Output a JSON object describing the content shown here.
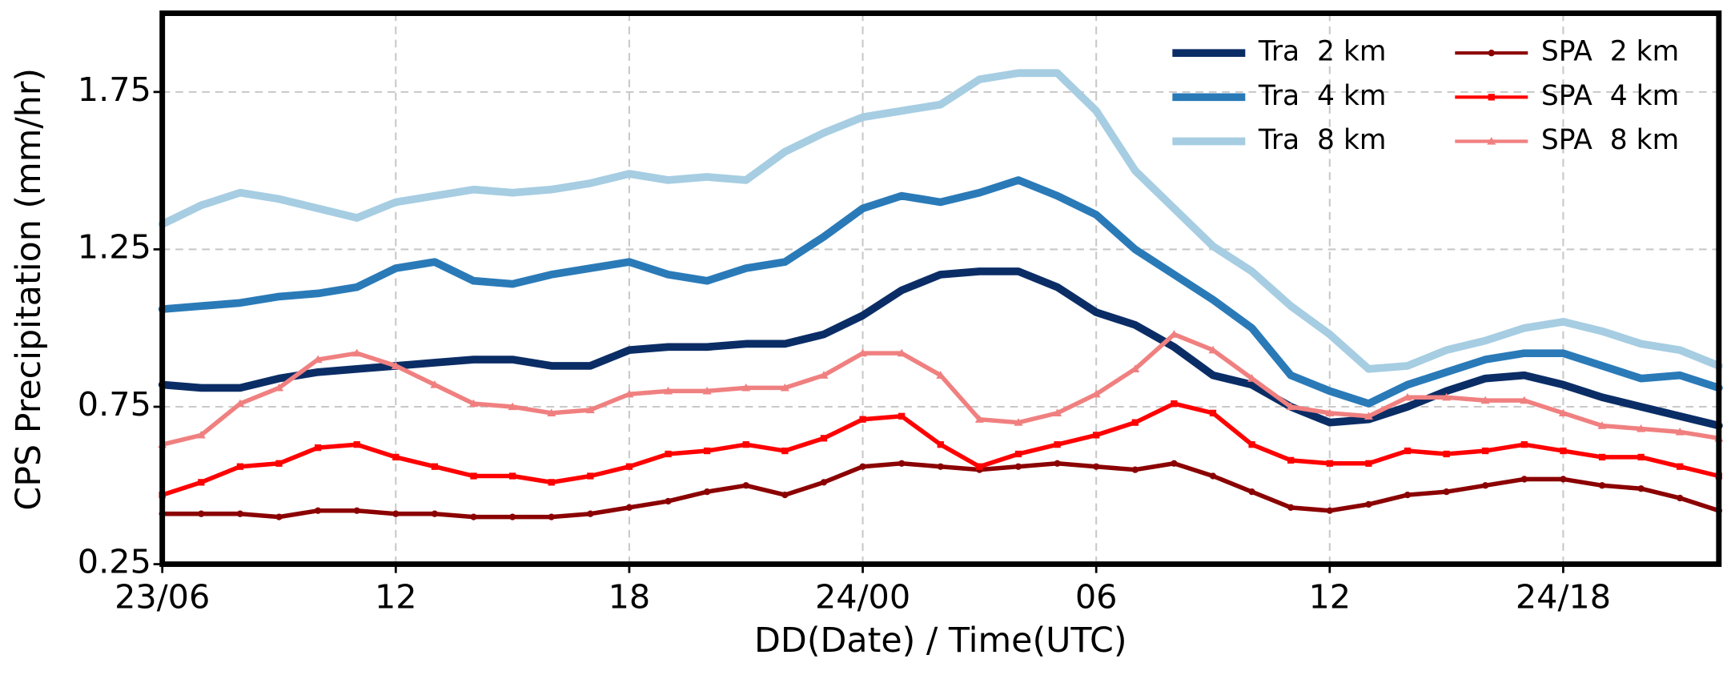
{
  "chart_data": {
    "type": "line",
    "xlabel": "DD(Date) / Time(UTC)",
    "ylabel": "CPS Precipitation (mm/hr)",
    "categories": [
      "23/06",
      null,
      null,
      null,
      null,
      null,
      "12",
      null,
      null,
      null,
      null,
      null,
      "18",
      null,
      null,
      null,
      null,
      null,
      "24/00",
      null,
      null,
      null,
      null,
      null,
      "06",
      null,
      null,
      null,
      null,
      null,
      "12",
      null,
      null,
      null,
      null,
      null,
      "24/18",
      null,
      null,
      null,
      null
    ],
    "ylim": [
      0.25,
      2.0
    ],
    "yticks": [
      0.25,
      0.75,
      1.25,
      1.75
    ],
    "grid": true,
    "legend": "upper right",
    "series": [
      {
        "name": "Tra  2 km",
        "color": "#0b2d66",
        "width": 7,
        "marker": "none",
        "values": [
          0.82,
          0.81,
          0.81,
          0.84,
          0.86,
          0.87,
          0.88,
          0.89,
          0.9,
          0.9,
          0.88,
          0.88,
          0.93,
          0.94,
          0.94,
          0.95,
          0.95,
          0.98,
          1.04,
          1.12,
          1.17,
          1.18,
          1.18,
          1.13,
          1.05,
          1.01,
          0.94,
          0.85,
          0.82,
          0.75,
          0.7,
          0.71,
          0.75,
          0.8,
          0.84,
          0.85,
          0.82,
          0.78,
          0.75,
          0.72,
          0.69
        ]
      },
      {
        "name": "Tra  4 km",
        "color": "#2a7ab8",
        "width": 7,
        "marker": "none",
        "values": [
          1.06,
          1.07,
          1.08,
          1.1,
          1.11,
          1.13,
          1.19,
          1.21,
          1.15,
          1.14,
          1.17,
          1.19,
          1.21,
          1.17,
          1.15,
          1.19,
          1.21,
          1.29,
          1.38,
          1.42,
          1.4,
          1.43,
          1.47,
          1.42,
          1.36,
          1.25,
          1.17,
          1.09,
          1.0,
          0.85,
          0.8,
          0.76,
          0.82,
          0.86,
          0.9,
          0.92,
          0.92,
          0.88,
          0.84,
          0.85,
          0.81
        ]
      },
      {
        "name": "Tra  8 km",
        "color": "#a6cde2",
        "width": 7,
        "marker": "none",
        "values": [
          1.33,
          1.39,
          1.43,
          1.41,
          1.38,
          1.35,
          1.4,
          1.42,
          1.44,
          1.43,
          1.44,
          1.46,
          1.49,
          1.47,
          1.48,
          1.47,
          1.56,
          1.62,
          1.67,
          1.69,
          1.71,
          1.79,
          1.81,
          1.81,
          1.69,
          1.5,
          1.38,
          1.26,
          1.18,
          1.07,
          0.98,
          0.87,
          0.88,
          0.93,
          0.96,
          1.0,
          1.02,
          0.99,
          0.95,
          0.93,
          0.88
        ]
      },
      {
        "name": "SPA  2 km",
        "color": "#8b0000",
        "width": 4,
        "marker": "circle",
        "values": [
          0.41,
          0.41,
          0.41,
          0.4,
          0.42,
          0.42,
          0.41,
          0.41,
          0.4,
          0.4,
          0.4,
          0.41,
          0.43,
          0.45,
          0.48,
          0.5,
          0.47,
          0.51,
          0.56,
          0.57,
          0.56,
          0.55,
          0.56,
          0.57,
          0.56,
          0.55,
          0.57,
          0.53,
          0.48,
          0.43,
          0.42,
          0.44,
          0.47,
          0.48,
          0.5,
          0.52,
          0.52,
          0.5,
          0.49,
          0.46,
          0.42
        ]
      },
      {
        "name": "SPA  4 km",
        "color": "#ff0000",
        "width": 4,
        "marker": "square",
        "values": [
          0.47,
          0.51,
          0.56,
          0.57,
          0.62,
          0.63,
          0.59,
          0.56,
          0.53,
          0.53,
          0.51,
          0.53,
          0.56,
          0.6,
          0.61,
          0.63,
          0.61,
          0.65,
          0.71,
          0.72,
          0.63,
          0.56,
          0.6,
          0.63,
          0.66,
          0.7,
          0.76,
          0.73,
          0.63,
          0.58,
          0.57,
          0.57,
          0.61,
          0.6,
          0.61,
          0.63,
          0.61,
          0.59,
          0.59,
          0.56,
          0.53
        ]
      },
      {
        "name": "SPA  8 km",
        "color": "#f08080",
        "width": 4,
        "marker": "triangle",
        "values": [
          0.63,
          0.66,
          0.76,
          0.81,
          0.9,
          0.92,
          0.88,
          0.82,
          0.76,
          0.75,
          0.73,
          0.74,
          0.79,
          0.8,
          0.8,
          0.81,
          0.81,
          0.85,
          0.92,
          0.92,
          0.85,
          0.71,
          0.7,
          0.73,
          0.79,
          0.87,
          0.98,
          0.93,
          0.84,
          0.75,
          0.73,
          0.72,
          0.78,
          0.78,
          0.77,
          0.77,
          0.73,
          0.69,
          0.68,
          0.67,
          0.65
        ]
      }
    ]
  }
}
